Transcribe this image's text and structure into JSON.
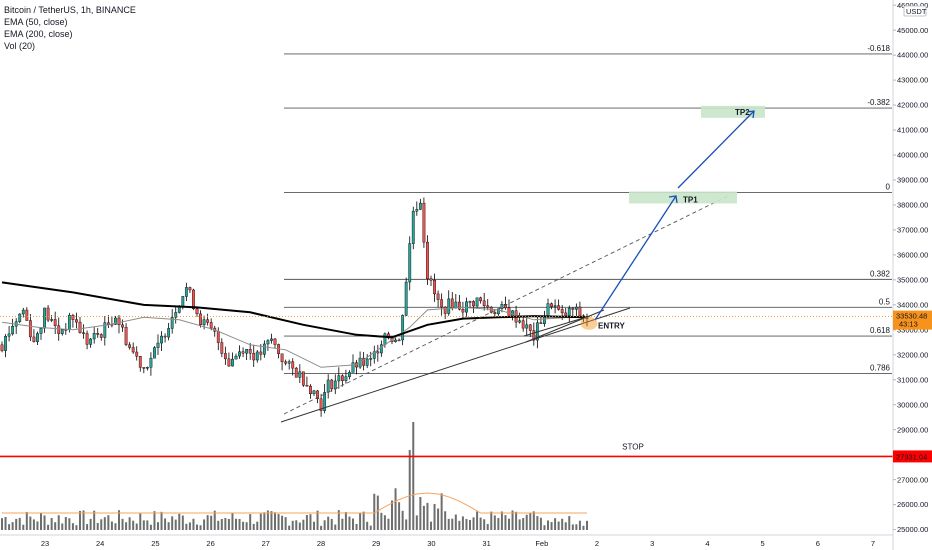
{
  "legend": {
    "symbol": "Bitcoin / TetherUS, 1h, BINANCE",
    "ema50": "EMA (50, close)",
    "ema200": "EMA (200, close)",
    "vol": "Vol (20)"
  },
  "currency": "USDT",
  "colors": {
    "up": "#26a69a",
    "down": "#ef5350",
    "candle": "#000000",
    "ema50": "#8c8c8c",
    "ema200": "#000000",
    "stop": "#ff0000",
    "arrow": "#1a4fb5",
    "target_zone": "#c8e6c9",
    "price_tag": "#f7931a",
    "volume": "#555555",
    "vol_ma": "#f7a35c"
  },
  "chart_data": {
    "type": "candlestick",
    "interval": "1h",
    "x_ticks": [
      "23",
      "24",
      "25",
      "26",
      "27",
      "28",
      "29",
      "30",
      "31",
      "Feb",
      "2",
      "3",
      "4",
      "5",
      "6",
      "7"
    ],
    "y_ticks": [
      25000,
      26000,
      27000,
      28000,
      29000,
      30000,
      31000,
      32000,
      33000,
      34000,
      35000,
      36000,
      37000,
      38000,
      39000,
      40000,
      41000,
      42000,
      43000,
      44000,
      45000,
      46000
    ],
    "y_tick_labels": [
      "25000.00",
      "26000.00",
      "27000.00",
      "28000.00",
      "29000.00",
      "30000.00",
      "31000.00",
      "32000.00",
      "33000.00",
      "34000.00",
      "35000.00",
      "36000.00",
      "37000.00",
      "38000.00",
      "39000.00",
      "40000.00",
      "41000.00",
      "42000.00",
      "43000.00",
      "44000.00",
      "45000.00",
      "46000.00"
    ],
    "ylim": [
      25000,
      46000
    ],
    "current_price": "33530.48",
    "price_tag_sub": "43:13",
    "fib_levels": [
      {
        "label": "-0.618",
        "price": 44050
      },
      {
        "label": "-0.382",
        "price": 41880
      },
      {
        "label": "0",
        "price": 38500
      },
      {
        "label": "0.382",
        "price": 35020
      },
      {
        "label": "0.5",
        "price": 33900
      },
      {
        "label": "0.618",
        "price": 32750
      },
      {
        "label": "0.786",
        "price": 31250
      }
    ],
    "stop": {
      "label": "STOP",
      "price": "27931.04",
      "value": 27931.04
    },
    "targets": [
      {
        "label": "TP1",
        "price": 38300
      },
      {
        "label": "TP2",
        "price": 41850
      }
    ],
    "entry": {
      "label": "ENTRY",
      "price": 33300
    },
    "price_path": [
      [
        0,
        32400
      ],
      [
        3,
        33200
      ],
      [
        6,
        33800
      ],
      [
        9,
        32500
      ],
      [
        12,
        33700
      ],
      [
        16,
        32900
      ],
      [
        20,
        33500
      ],
      [
        24,
        32500
      ],
      [
        28,
        32900
      ],
      [
        32,
        33600
      ],
      [
        36,
        32300
      ],
      [
        40,
        31500
      ],
      [
        44,
        32300
      ],
      [
        48,
        33600
      ],
      [
        52,
        34700
      ],
      [
        56,
        33400
      ],
      [
        60,
        32800
      ],
      [
        64,
        31700
      ],
      [
        68,
        32300
      ],
      [
        72,
        31900
      ],
      [
        76,
        32600
      ],
      [
        80,
        31600
      ],
      [
        84,
        31200
      ],
      [
        88,
        30500
      ],
      [
        90,
        30000
      ],
      [
        92,
        30800
      ],
      [
        96,
        31100
      ],
      [
        100,
        31600
      ],
      [
        104,
        31700
      ],
      [
        108,
        32900
      ],
      [
        112,
        32500
      ],
      [
        114,
        35000
      ],
      [
        116,
        37800
      ],
      [
        118,
        38200
      ],
      [
        120,
        35200
      ],
      [
        122,
        34400
      ],
      [
        124,
        33800
      ],
      [
        127,
        34100
      ],
      [
        130,
        33900
      ],
      [
        134,
        34200
      ],
      [
        138,
        33800
      ],
      [
        142,
        33800
      ],
      [
        146,
        33400
      ],
      [
        150,
        32700
      ],
      [
        152,
        33400
      ],
      [
        155,
        34100
      ],
      [
        158,
        33500
      ],
      [
        161,
        33800
      ],
      [
        164,
        33500
      ],
      [
        165,
        33530
      ]
    ],
    "ema50_path": [
      [
        0,
        33300
      ],
      [
        10,
        33100
      ],
      [
        20,
        33000
      ],
      [
        30,
        33200
      ],
      [
        40,
        33500
      ],
      [
        50,
        33400
      ],
      [
        60,
        33000
      ],
      [
        70,
        32400
      ],
      [
        80,
        32200
      ],
      [
        90,
        31500
      ],
      [
        100,
        31600
      ],
      [
        110,
        32600
      ],
      [
        115,
        33100
      ],
      [
        120,
        33800
      ],
      [
        130,
        33900
      ],
      [
        140,
        33800
      ],
      [
        150,
        33400
      ],
      [
        160,
        33500
      ],
      [
        165,
        33500
      ]
    ],
    "ema200_path": [
      [
        0,
        34900
      ],
      [
        20,
        34500
      ],
      [
        40,
        34000
      ],
      [
        55,
        33900
      ],
      [
        70,
        33700
      ],
      [
        85,
        33200
      ],
      [
        100,
        32800
      ],
      [
        110,
        32700
      ],
      [
        120,
        33200
      ],
      [
        130,
        33450
      ],
      [
        140,
        33500
      ],
      [
        150,
        33550
      ],
      [
        165,
        33500
      ]
    ]
  }
}
